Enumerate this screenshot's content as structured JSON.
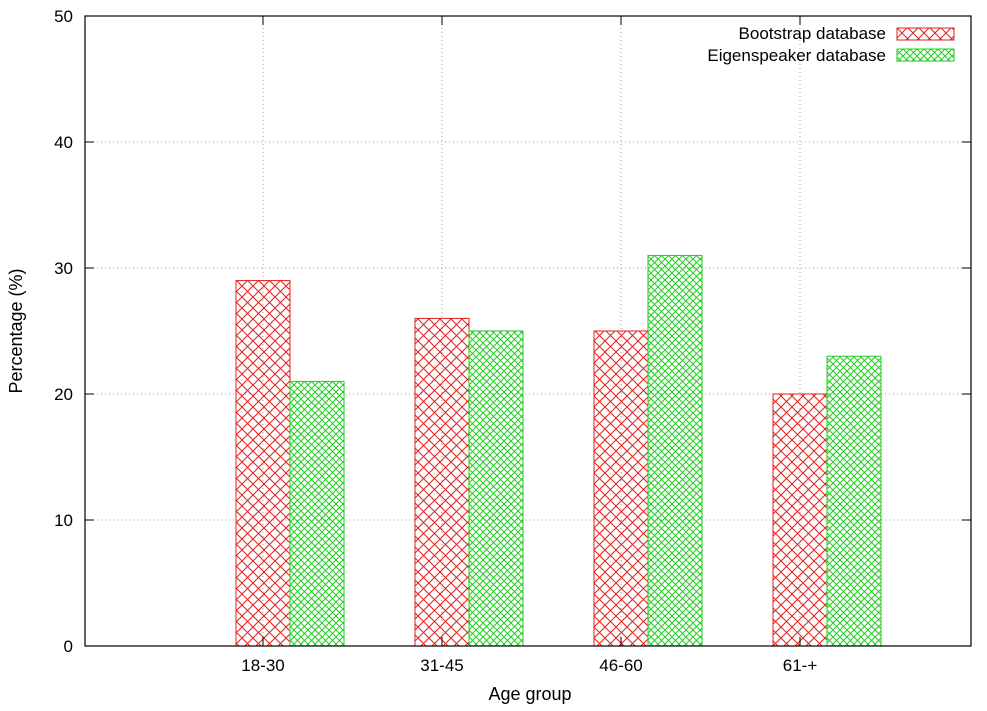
{
  "chart_data": {
    "type": "bar",
    "categories": [
      "18-30",
      "31-45",
      "46-60",
      "61-+"
    ],
    "series": [
      {
        "name": "Bootstrap database",
        "values": [
          29,
          26,
          25,
          20
        ],
        "color": "#e0201c"
      },
      {
        "name": "Eigenspeaker database",
        "values": [
          21,
          25,
          31,
          23
        ],
        "color": "#22cc22"
      }
    ],
    "xlabel": "Age group",
    "ylabel": "Percentage (%)",
    "ylim": [
      0,
      50
    ],
    "yticks": [
      0,
      10,
      20,
      30,
      40,
      50
    ],
    "grid": true,
    "legend_position": "top-right"
  }
}
